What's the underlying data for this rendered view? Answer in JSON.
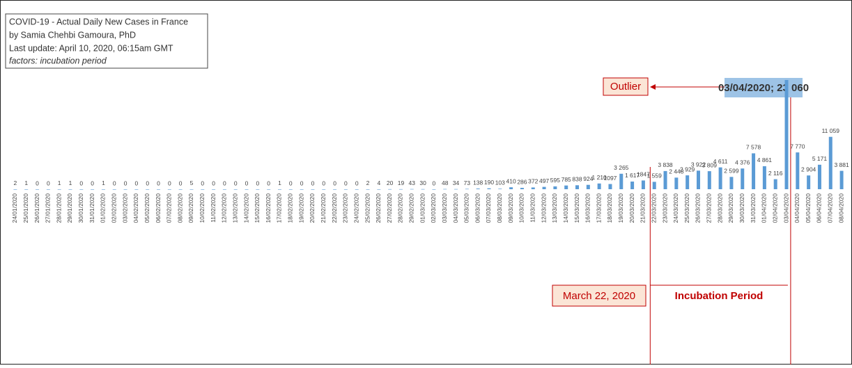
{
  "chart_data": {
    "type": "bar",
    "title_lines": [
      "COVID-19 - Actual Daily New Cases in France",
      "by Samia Chehbi Gamoura, PhD",
      "Last update: April 10, 2020, 06:15am GMT",
      "factors:  incubation period"
    ],
    "categories": [
      "24/01/2020",
      "25/01/2020",
      "26/01/2020",
      "27/01/2020",
      "28/01/2020",
      "29/01/2020",
      "30/01/2020",
      "31/01/2020",
      "01/02/2020",
      "02/02/2020",
      "03/02/2020",
      "04/02/2020",
      "05/02/2020",
      "06/02/2020",
      "07/02/2020",
      "08/02/2020",
      "09/02/2020",
      "10/02/2020",
      "11/02/2020",
      "12/02/2020",
      "13/02/2020",
      "14/02/2020",
      "15/02/2020",
      "16/02/2020",
      "17/02/2020",
      "18/02/2020",
      "19/02/2020",
      "20/02/2020",
      "21/02/2020",
      "22/02/2020",
      "23/02/2020",
      "24/02/2020",
      "25/02/2020",
      "26/02/2020",
      "27/02/2020",
      "28/02/2020",
      "29/02/2020",
      "01/03/2020",
      "02/03/2020",
      "03/03/2020",
      "04/03/2020",
      "05/03/2020",
      "06/03/2020",
      "07/03/2020",
      "08/03/2020",
      "09/03/2020",
      "10/03/2020",
      "11/03/2020",
      "12/03/2020",
      "13/03/2020",
      "14/03/2020",
      "15/03/2020",
      "16/03/2020",
      "17/03/2020",
      "18/03/2020",
      "19/03/2020",
      "20/03/2020",
      "21/03/2020",
      "22/03/2020",
      "23/03/2020",
      "24/03/2020",
      "25/03/2020",
      "26/03/2020",
      "27/03/2020",
      "28/03/2020",
      "29/03/2020",
      "30/03/2020",
      "31/03/2020",
      "01/04/2020",
      "02/04/2020",
      "03/04/2020",
      "04/04/2020",
      "05/04/2020",
      "06/04/2020",
      "07/04/2020",
      "08/04/2020"
    ],
    "values": [
      2,
      1,
      0,
      0,
      1,
      1,
      0,
      0,
      1,
      0,
      0,
      0,
      0,
      0,
      0,
      0,
      5,
      0,
      0,
      0,
      0,
      0,
      0,
      0,
      1,
      0,
      0,
      0,
      0,
      0,
      0,
      0,
      2,
      4,
      20,
      19,
      43,
      30,
      0,
      48,
      34,
      73,
      138,
      190,
      103,
      410,
      286,
      372,
      497,
      595,
      785,
      838,
      924,
      1210,
      1097,
      3265,
      1617,
      1847,
      1559,
      3838,
      2448,
      2929,
      3922,
      3809,
      4611,
      2599,
      4376,
      7578,
      4861,
      2116,
      23060,
      7770,
      2904,
      5171,
      11059,
      3881
    ],
    "value_labels": [
      "2",
      "1",
      "0",
      "0",
      "1",
      "1",
      "0",
      "0",
      "1",
      "0",
      "0",
      "0",
      "0",
      "0",
      "0",
      "0",
      "5",
      "0",
      "0",
      "0",
      "0",
      "0",
      "0",
      "0",
      "1",
      "0",
      "0",
      "0",
      "0",
      "0",
      "0",
      "0",
      "2",
      "4",
      "20",
      "19",
      "43",
      "30",
      "0",
      "48",
      "34",
      "73",
      "138",
      "190",
      "103",
      "410",
      "286",
      "372",
      "497",
      "595",
      "785",
      "838",
      "924",
      "1 210",
      "1097",
      "3 265",
      "1 617",
      "1847",
      "1 559",
      "3 838",
      "2 448",
      "2 929",
      "3 922",
      "3 809",
      "4 611",
      "2 599",
      "4 376",
      "7 578",
      "4 861",
      "2 116",
      null,
      "7 770",
      "2 904",
      "5 171",
      "11 059",
      "3 881"
    ],
    "color": "#5b9bd5",
    "ylim": [
      0,
      23060
    ],
    "annotations": {
      "outlier": "Outlier",
      "outlier_value": "03/04/2020; 23 060",
      "start": "March 22, 2020",
      "period": "Incubation Period"
    }
  }
}
